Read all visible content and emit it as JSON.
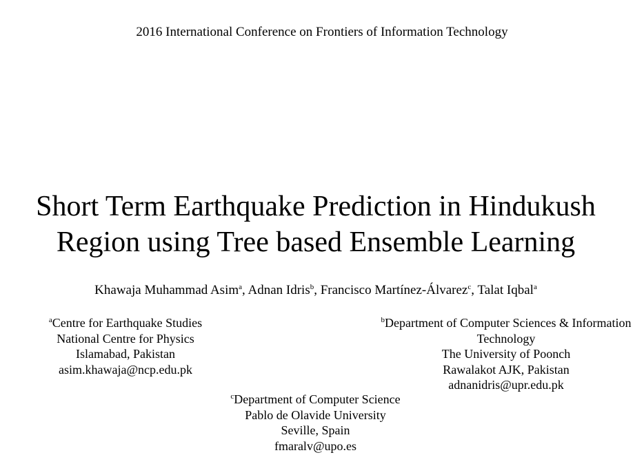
{
  "conference": "2016 International Conference on Frontiers of Information Technology",
  "title": {
    "line1": "Short Term Earthquake Prediction in Hindukush",
    "line2": "Region using Tree based Ensemble Learning"
  },
  "authors": [
    {
      "name": "Khawaja Muhammad Asim",
      "mark": "a",
      "sep": ", "
    },
    {
      "name": "Adnan Idris",
      "mark": "b",
      "sep": ", "
    },
    {
      "name": "Francisco Martínez-Álvarez",
      "mark": "c",
      "sep": ", "
    },
    {
      "name": "Talat Iqbal",
      "mark": "a",
      "sep": ""
    }
  ],
  "affiliations": {
    "a": {
      "mark": "a",
      "lines": [
        "Centre for Earthquake Studies",
        "National Centre for Physics",
        "Islamabad, Pakistan",
        "asim.khawaja@ncp.edu.pk"
      ]
    },
    "b": {
      "mark": "b",
      "lines": [
        "Department of Computer Sciences & Information",
        "Technology",
        "The University of Poonch",
        "Rawalakot AJK, Pakistan",
        "adnanidris@upr.edu.pk"
      ]
    },
    "c": {
      "mark": "c",
      "lines": [
        "Department of Computer Science",
        "Pablo de Olavide University",
        "Seville, Spain",
        "fmaralv@upo.es"
      ]
    }
  }
}
